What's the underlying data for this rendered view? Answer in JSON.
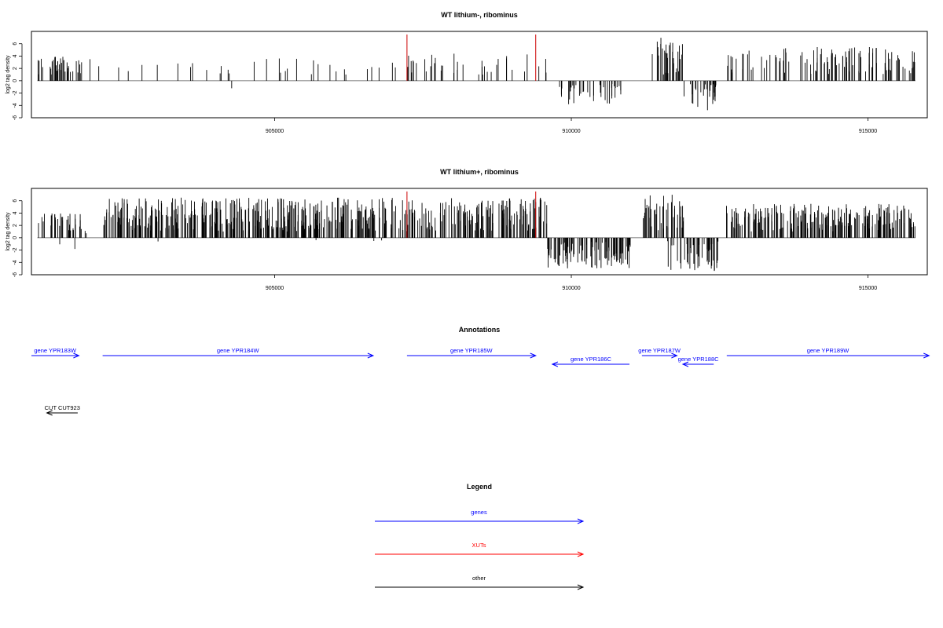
{
  "chart_data": [
    {
      "type": "bar",
      "title": "WT lithium-, ribominus",
      "ylabel": "log2 tag density",
      "xlim": [
        900900,
        916000
      ],
      "ylim": [
        -6,
        8
      ],
      "yticks": [
        -6,
        -4,
        -2,
        0,
        2,
        4,
        6
      ],
      "xticks": [
        905000,
        910000,
        915000
      ],
      "xtick_labels": [
        "905000",
        "910000",
        "915000"
      ],
      "bar_color": "#000000",
      "marker_color": "#cc0000",
      "markers": [
        {
          "x": 907230,
          "y": 7.5
        },
        {
          "x": 909400,
          "y": 7.5
        }
      ],
      "segments": [
        {
          "from": 901000,
          "to": 901750,
          "min": 1.0,
          "max": 4.0,
          "density": 0.5,
          "sign": 1
        },
        {
          "from": 901750,
          "to": 902100,
          "min": 1.5,
          "max": 3.8,
          "density": 0.05,
          "sign": 1
        },
        {
          "from": 902100,
          "to": 904500,
          "min": 1.0,
          "max": 3.0,
          "density": 0.05,
          "sign": 1
        },
        {
          "from": 903500,
          "to": 904500,
          "min": 0.5,
          "max": 1.5,
          "density": 0.008,
          "sign": -1
        },
        {
          "from": 904500,
          "to": 906200,
          "min": 1.0,
          "max": 3.8,
          "density": 0.08,
          "sign": 1
        },
        {
          "from": 906200,
          "to": 906300,
          "min": 2.5,
          "max": 3.0,
          "density": 0.02,
          "sign": -1
        },
        {
          "from": 906300,
          "to": 907000,
          "min": 1.0,
          "max": 3.5,
          "density": 0.06,
          "sign": 1
        },
        {
          "from": 907000,
          "to": 909600,
          "min": 1.0,
          "max": 4.5,
          "density": 0.15,
          "sign": 1
        },
        {
          "from": 909600,
          "to": 910900,
          "min": 0.5,
          "max": 4.2,
          "density": 0.3,
          "sign": -1
        },
        {
          "from": 911350,
          "to": 911900,
          "min": 1.0,
          "max": 7.0,
          "density": 0.6,
          "sign": 1
        },
        {
          "from": 911900,
          "to": 912450,
          "min": 0.5,
          "max": 5.0,
          "density": 0.5,
          "sign": -1
        },
        {
          "from": 912600,
          "to": 915800,
          "min": 1.0,
          "max": 5.5,
          "density": 0.35,
          "sign": 1
        }
      ]
    },
    {
      "type": "bar",
      "title": "WT lithium+, ribominus",
      "ylabel": "log2 tag density",
      "xlim": [
        900900,
        916000
      ],
      "ylim": [
        -6,
        8
      ],
      "yticks": [
        -6,
        -4,
        -2,
        0,
        2,
        4,
        6
      ],
      "xticks": [
        905000,
        910000,
        915000
      ],
      "xtick_labels": [
        "905000",
        "910000",
        "915000"
      ],
      "bar_color": "#000000",
      "marker_color": "#cc0000",
      "markers": [
        {
          "x": 907230,
          "y": 7.5
        },
        {
          "x": 909400,
          "y": 7.5
        }
      ],
      "segments": [
        {
          "from": 901000,
          "to": 901750,
          "min": 1.0,
          "max": 4.0,
          "density": 0.5,
          "sign": 1
        },
        {
          "from": 901300,
          "to": 901750,
          "min": 0.5,
          "max": 3.0,
          "density": 0.04,
          "sign": -1
        },
        {
          "from": 901750,
          "to": 902100,
          "min": 0.5,
          "max": 1.5,
          "density": 0.05,
          "sign": 1
        },
        {
          "from": 902100,
          "to": 909600,
          "min": 1.0,
          "max": 6.5,
          "density": 0.7,
          "sign": 1
        },
        {
          "from": 903000,
          "to": 907000,
          "min": 0.3,
          "max": 1.0,
          "density": 0.01,
          "sign": -1
        },
        {
          "from": 909600,
          "to": 911000,
          "min": 0.5,
          "max": 5.0,
          "density": 0.7,
          "sign": -1
        },
        {
          "from": 911200,
          "to": 911900,
          "min": 1.0,
          "max": 7.0,
          "density": 0.6,
          "sign": 1
        },
        {
          "from": 911600,
          "to": 912500,
          "min": 0.5,
          "max": 5.5,
          "density": 0.5,
          "sign": -1
        },
        {
          "from": 912600,
          "to": 915800,
          "min": 1.0,
          "max": 5.5,
          "density": 0.7,
          "sign": 1
        },
        {
          "from": 915100,
          "to": 915300,
          "min": 1.0,
          "max": 2.0,
          "density": 0.01,
          "sign": -1
        }
      ]
    }
  ],
  "annotations": {
    "title": "Annotations",
    "xlim": [
      900900,
      916000
    ],
    "features": [
      {
        "label": "gene YPR183W",
        "start": 900900,
        "end": 901700,
        "strand": "+",
        "row": 0,
        "category": "genes"
      },
      {
        "label": "gene YPR184W",
        "start": 902100,
        "end": 906660,
        "strand": "+",
        "row": 0,
        "category": "genes"
      },
      {
        "label": "gene YPR185W",
        "start": 907230,
        "end": 909400,
        "strand": "+",
        "row": 0,
        "category": "genes"
      },
      {
        "label": "gene YPR186C",
        "start": 909680,
        "end": 910980,
        "strand": "-",
        "row": 1,
        "category": "genes"
      },
      {
        "label": "gene YPR187W",
        "start": 911190,
        "end": 911780,
        "strand": "+",
        "row": 0,
        "category": "genes"
      },
      {
        "label": "gene YPR188C",
        "start": 911880,
        "end": 912400,
        "strand": "-",
        "row": 1,
        "category": "genes"
      },
      {
        "label": "gene YPR189W",
        "start": 912620,
        "end": 916030,
        "strand": "+",
        "row": 0,
        "category": "genes"
      },
      {
        "label": "CUT CUT923",
        "start": 901160,
        "end": 901680,
        "strand": "-",
        "row": 2,
        "category": "other"
      }
    ]
  },
  "legend": {
    "title": "Legend",
    "items": [
      {
        "label": "genes",
        "color": "#0000ff"
      },
      {
        "label": "XUTs",
        "color": "#ff0000"
      },
      {
        "label": "other",
        "color": "#000000"
      }
    ]
  },
  "colors": {
    "genes": "#0000ff",
    "XUTs": "#ff0000",
    "other": "#000000"
  }
}
